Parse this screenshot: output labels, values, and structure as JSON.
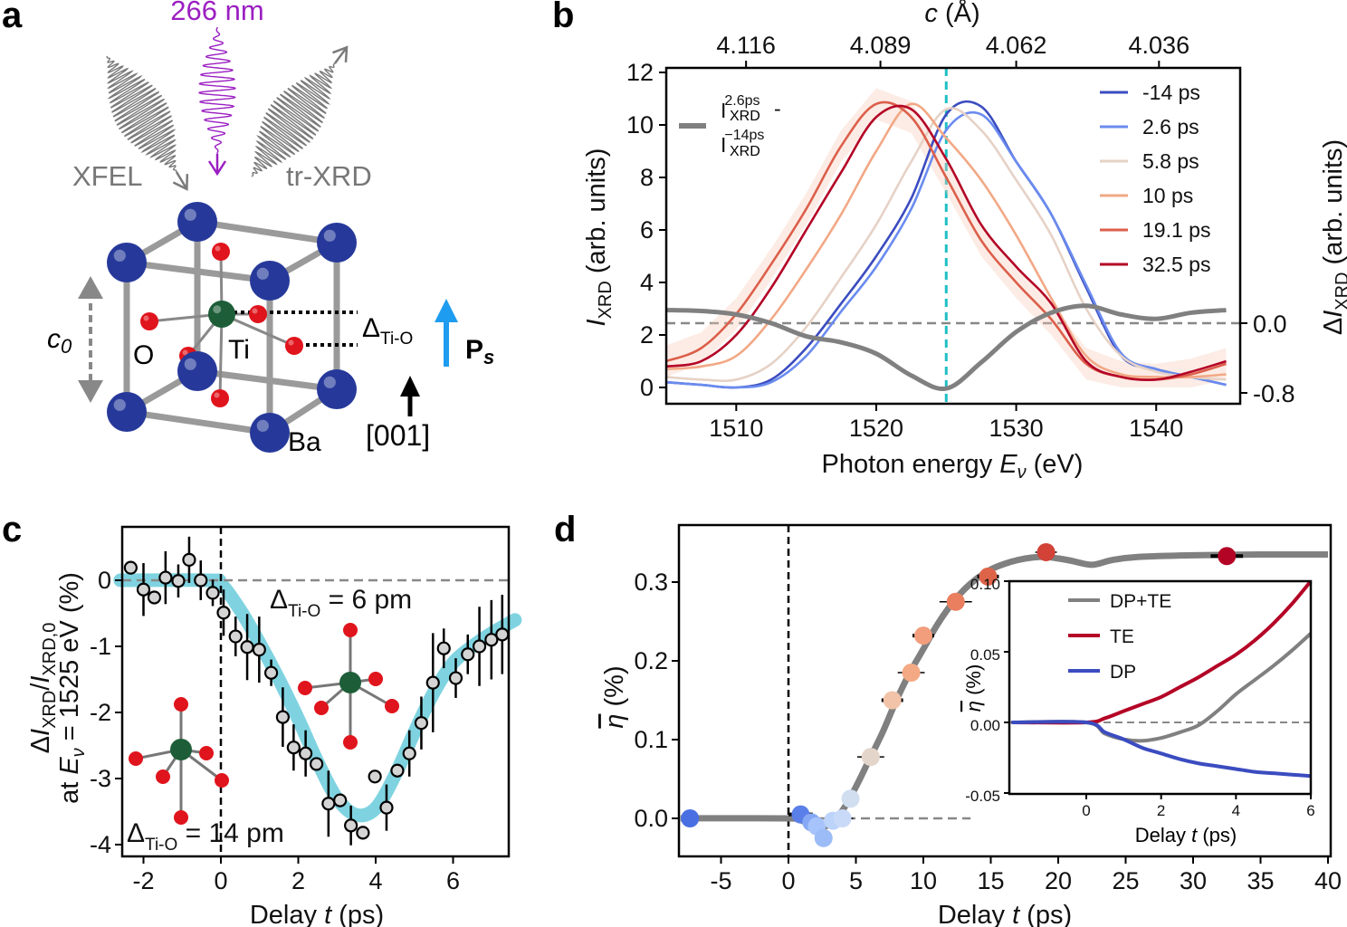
{
  "panel_labels": {
    "a": "a",
    "b": "b",
    "c": "c",
    "d": "d"
  },
  "panel_a": {
    "wavelength": "266 nm",
    "xfel": "XFEL",
    "trxrd": "tr-XRD",
    "c0": "c",
    "c0_sub": "0",
    "oxygen": "O",
    "titanium": "Ti",
    "barium": "Ba",
    "delta": "Δ",
    "delta_sub": "Ti-O",
    "ps": "P",
    "ps_sub": "s",
    "direction": "[001]"
  },
  "colors": {
    "ba": "#26399a",
    "ti": "#1d5e38",
    "o": "#e0141c",
    "pump": "#9b1fc2",
    "xray": "#7a7a7a",
    "ps_arrow": "#1e9cf0",
    "fit": "#7fd3e0",
    "marker_line": "#1fbfc4"
  },
  "chart_data": [
    {
      "id": "b",
      "type": "line",
      "xlabel": {
        "pre": "Photon energy ",
        "var": "E",
        "sub": "ν",
        "post": " (eV)"
      },
      "ylabel": {
        "var": "I",
        "sub": "XRD",
        "post": " (arb. units)"
      },
      "y2label": {
        "pre": "Δ",
        "var": "I",
        "sub": "XRD",
        "post": " (arb. units)"
      },
      "x2label": {
        "var": "c",
        "post": " (Å)"
      },
      "xlim": [
        1505,
        1546
      ],
      "ylim": [
        0,
        12
      ],
      "y2lim": [
        -0.8,
        0.15
      ],
      "xticks": [
        1510,
        1520,
        1530,
        1540
      ],
      "xtick_labels": [
        "1510",
        "1520",
        "1530",
        "1540"
      ],
      "yticks": [
        0,
        2,
        4,
        6,
        8,
        10,
        12
      ],
      "ytick_labels": [
        "0",
        "2",
        "4",
        "6",
        "8",
        "10",
        "12"
      ],
      "y2ticks": [
        0.0,
        -0.8
      ],
      "y2tick_labels": [
        "0.0",
        "-0.8"
      ],
      "x2ticks_energy": [
        1510.7,
        1520.3,
        1530,
        1540.2
      ],
      "x2tick_labels": [
        "4.116",
        "4.089",
        "4.062",
        "4.036"
      ],
      "vline": 1525,
      "x": [
        1505,
        1507.5,
        1510,
        1512.5,
        1515,
        1517.5,
        1520,
        1522.5,
        1525,
        1527.5,
        1530,
        1532.5,
        1535,
        1537.5,
        1540,
        1542.5,
        1545
      ],
      "series": [
        {
          "name": "-14 ps",
          "color": "#3b4cc0",
          "values": [
            0.2,
            0.1,
            0.0,
            0.3,
            1.5,
            3.2,
            5.0,
            7.2,
            10.4,
            10.7,
            8.6,
            6.6,
            3.8,
            1.2,
            0.7,
            0.4,
            0.1
          ]
        },
        {
          "name": "2.6 ps",
          "color": "#6a8bef",
          "values": [
            0.2,
            0.1,
            0.0,
            0.2,
            1.2,
            2.9,
            4.6,
            6.8,
            9.8,
            10.4,
            8.6,
            6.6,
            3.9,
            1.3,
            0.7,
            0.4,
            0.1
          ]
        },
        {
          "name": "5.8 ps",
          "color": "#e6d2c6",
          "values": [
            0.4,
            0.3,
            0.3,
            0.9,
            2.3,
            4.2,
            6.2,
            8.6,
            10.6,
            9.8,
            7.9,
            5.8,
            3.0,
            1.2,
            0.6,
            0.4,
            0.3
          ]
        },
        {
          "name": "10 ps",
          "color": "#f2a885",
          "values": [
            0.7,
            0.8,
            1.2,
            2.6,
            4.5,
            6.6,
            9.0,
            10.8,
            9.5,
            7.9,
            5.8,
            3.4,
            1.2,
            0.5,
            0.4,
            0.4,
            0.5
          ]
        },
        {
          "name": "19.1 ps",
          "color": "#dc5f4b",
          "values": [
            1.0,
            1.5,
            2.8,
            4.7,
            6.8,
            9.2,
            10.8,
            10.3,
            8.0,
            5.6,
            4.0,
            2.6,
            0.9,
            0.4,
            0.3,
            0.5,
            0.9
          ]
        },
        {
          "name": "32.5 ps",
          "color": "#b40426",
          "values": [
            0.8,
            1.0,
            2.0,
            3.8,
            6.0,
            8.2,
            10.3,
            10.6,
            8.7,
            6.2,
            4.6,
            3.2,
            1.0,
            0.4,
            0.3,
            0.6,
            1.0
          ]
        }
      ],
      "difference": {
        "label": {
          "a": "I",
          "a_sup": "2.6ps",
          "a_sub": "XRD",
          "minus": " -",
          "b": "I",
          "b_sup": "−14ps",
          "b_sub": "XRD"
        },
        "color": "#808080",
        "axis": "right",
        "values": [
          0.15,
          0.14,
          0.1,
          0.0,
          -0.15,
          -0.22,
          -0.35,
          -0.6,
          -0.75,
          -0.45,
          -0.1,
          0.12,
          0.2,
          0.1,
          0.05,
          0.12,
          0.15
        ]
      },
      "legend_position": "top-right"
    },
    {
      "id": "c",
      "type": "scatter",
      "xlabel": {
        "pre": "Delay ",
        "var": "t",
        "post": " (ps)"
      },
      "ylabel": {
        "l1_pre": "Δ",
        "l1_var": "I",
        "l1_sub": "XRD",
        "l1_mid": "/",
        "l1_var2": "I",
        "l1_sub2": "XRD,0",
        "l2_pre": "at ",
        "l2_var": "E",
        "l2_sub": "ν",
        "l2_post": " = 1525 eV (%)"
      },
      "xlim": [
        -2.6,
        7.6
      ],
      "ylim": [
        -4.15,
        0.8
      ],
      "xticks": [
        -2,
        0,
        2,
        4,
        6
      ],
      "xtick_labels": [
        "-2",
        "0",
        "2",
        "4",
        "6"
      ],
      "yticks": [
        0,
        -1,
        -2,
        -3,
        -4
      ],
      "ytick_labels": [
        "0",
        "-1",
        "-2",
        "-3",
        "-4"
      ],
      "annotations": [
        {
          "pre": "Δ",
          "sub": "Ti-O",
          "post": " = 6 pm"
        },
        {
          "pre": "Δ",
          "sub": "Ti-O",
          "post": " = 14 pm"
        }
      ],
      "points": {
        "x": [
          -2.33,
          -2.0,
          -1.72,
          -1.43,
          -1.1,
          -0.82,
          -0.52,
          -0.21,
          0.07,
          0.38,
          0.68,
          0.99,
          1.3,
          1.6,
          1.88,
          2.19,
          2.47,
          2.78,
          3.08,
          3.36,
          3.67,
          3.98,
          4.28,
          4.56,
          4.87,
          5.18,
          5.48,
          5.76,
          6.07,
          6.38,
          6.68,
          6.99,
          7.27
        ],
        "y": [
          0.19,
          -0.14,
          -0.26,
          0.04,
          -0.01,
          0.31,
          0.0,
          -0.19,
          -0.49,
          -0.85,
          -1.01,
          -1.05,
          -1.4,
          -2.07,
          -2.53,
          -2.62,
          -2.78,
          -3.38,
          -3.33,
          -3.71,
          -3.82,
          -2.97,
          -3.44,
          -2.88,
          -2.62,
          -2.16,
          -1.55,
          -1.03,
          -1.48,
          -1.12,
          -1.0,
          -0.9,
          -0.82
        ],
        "yerr": [
          0.1,
          0.4,
          0.1,
          0.4,
          0.25,
          0.35,
          0.3,
          0.2,
          0.35,
          0.3,
          0.5,
          0.5,
          0.2,
          0.45,
          0.35,
          0.35,
          0.1,
          0.5,
          0.1,
          0.3,
          0.1,
          0.1,
          0.35,
          0.1,
          0.35,
          0.4,
          0.75,
          0.3,
          0.3,
          0.3,
          0.6,
          0.6,
          0.6
        ]
      },
      "fit": {
        "x": [
          -2.6,
          -0.3,
          0,
          0.5,
          1,
          1.5,
          2,
          2.5,
          3,
          3.5,
          4,
          4.5,
          5,
          5.5,
          6,
          6.5,
          7,
          7.6
        ],
        "y": [
          0,
          0,
          -0.05,
          -0.45,
          -0.95,
          -1.5,
          -2.1,
          -2.75,
          -3.3,
          -3.55,
          -3.45,
          -2.95,
          -2.3,
          -1.7,
          -1.25,
          -1.0,
          -0.8,
          -0.6
        ]
      }
    },
    {
      "id": "d",
      "type": "scatter",
      "xlabel": {
        "pre": "Delay ",
        "var": "t",
        "post": " (ps)"
      },
      "ylabel": {
        "var": "η",
        "post": " (%)"
      },
      "xlim": [
        -8,
        40
      ],
      "ylim": [
        -0.05,
        0.37
      ],
      "xticks": [
        -5,
        0,
        5,
        10,
        15,
        20,
        25,
        30,
        35,
        40
      ],
      "xtick_labels": [
        "-5",
        "0",
        "5",
        "10",
        "15",
        "20",
        "25",
        "30",
        "35",
        "40"
      ],
      "yticks": [
        0,
        0.1,
        0.2,
        0.3
      ],
      "ytick_labels": [
        "0.0",
        "0.1",
        "0.2",
        "0.3"
      ],
      "points": {
        "x": [
          -7.3,
          0.9,
          1.7,
          2.1,
          2.6,
          3.3,
          4.0,
          4.6,
          6.1,
          7.7,
          9.1,
          10.0,
          12.4,
          14.8,
          19.1,
          32.5
        ],
        "y": [
          0.0,
          0.005,
          -0.005,
          -0.01,
          -0.025,
          -0.003,
          0.0,
          0.025,
          0.078,
          0.15,
          0.185,
          0.232,
          0.275,
          0.307,
          0.338,
          0.333
        ],
        "xerr": [
          0,
          0.9,
          0.5,
          0.5,
          0.5,
          0.5,
          0.8,
          0.5,
          1.0,
          0.8,
          1.0,
          0.8,
          1.2,
          0.8,
          0.8,
          1.2
        ],
        "colors": [
          "#4a6fe3",
          "#5b7fe8",
          "#86a8f5",
          "#a7c3fb",
          "#9cbcf8",
          "#bcd3fa",
          "#c9daf8",
          "#d1def0",
          "#e4d5cb",
          "#f2c3a8",
          "#f4a985",
          "#f29d7c",
          "#ea7f60",
          "#de6449",
          "#d24237",
          "#b40426"
        ]
      },
      "curve": {
        "x": [
          -8,
          0,
          1,
          2,
          3,
          4,
          5,
          6,
          7,
          8,
          9,
          10,
          11,
          12,
          13,
          14,
          15,
          16,
          17,
          18,
          19,
          20,
          21,
          22.5,
          24,
          26,
          30,
          35,
          40
        ],
        "y": [
          0,
          0,
          -0.003,
          -0.012,
          -0.008,
          0.01,
          0.04,
          0.075,
          0.11,
          0.15,
          0.185,
          0.215,
          0.245,
          0.27,
          0.29,
          0.305,
          0.316,
          0.323,
          0.328,
          0.331,
          0.332,
          0.33,
          0.327,
          0.322,
          0.328,
          0.332,
          0.334,
          0.335,
          0.335
        ]
      },
      "inset": {
        "xlabel": {
          "pre": "Delay ",
          "var": "t",
          "post": " (ps)"
        },
        "ylabel": {
          "var": "η",
          "post": " (%)"
        },
        "xlim": [
          -2.04,
          6
        ],
        "ylim": [
          -0.05,
          0.1
        ],
        "xticks": [
          0,
          2,
          4,
          6
        ],
        "xtick_labels": [
          "0",
          "2",
          "4",
          "6"
        ],
        "yticks": [
          0.1,
          0.05,
          0,
          -0.05
        ],
        "ytick_labels": [
          "0.10",
          "0.05",
          "0.00",
          "-0.05"
        ],
        "x": [
          -2,
          0,
          0.5,
          1,
          1.5,
          2,
          2.5,
          3,
          3.5,
          4,
          4.5,
          5,
          5.5,
          6
        ],
        "series": [
          {
            "name": "DP+TE",
            "color": "#808080",
            "values": [
              0,
              0,
              -0.008,
              -0.012,
              -0.013,
              -0.011,
              -0.007,
              -0.002,
              0.008,
              0.02,
              0.03,
              0.04,
              0.051,
              0.063
            ]
          },
          {
            "name": "TE",
            "color": "#b40426",
            "values": [
              0,
              0,
              0.003,
              0.008,
              0.013,
              0.018,
              0.025,
              0.032,
              0.04,
              0.048,
              0.058,
              0.07,
              0.084,
              0.1
            ]
          },
          {
            "name": "DP",
            "color": "#3b4cc0",
            "values": [
              0,
              0,
              -0.007,
              -0.012,
              -0.018,
              -0.022,
              -0.026,
              -0.029,
              -0.031,
              -0.033,
              -0.035,
              -0.036,
              -0.037,
              -0.038
            ]
          }
        ],
        "legend_position": "top-left"
      }
    }
  ]
}
